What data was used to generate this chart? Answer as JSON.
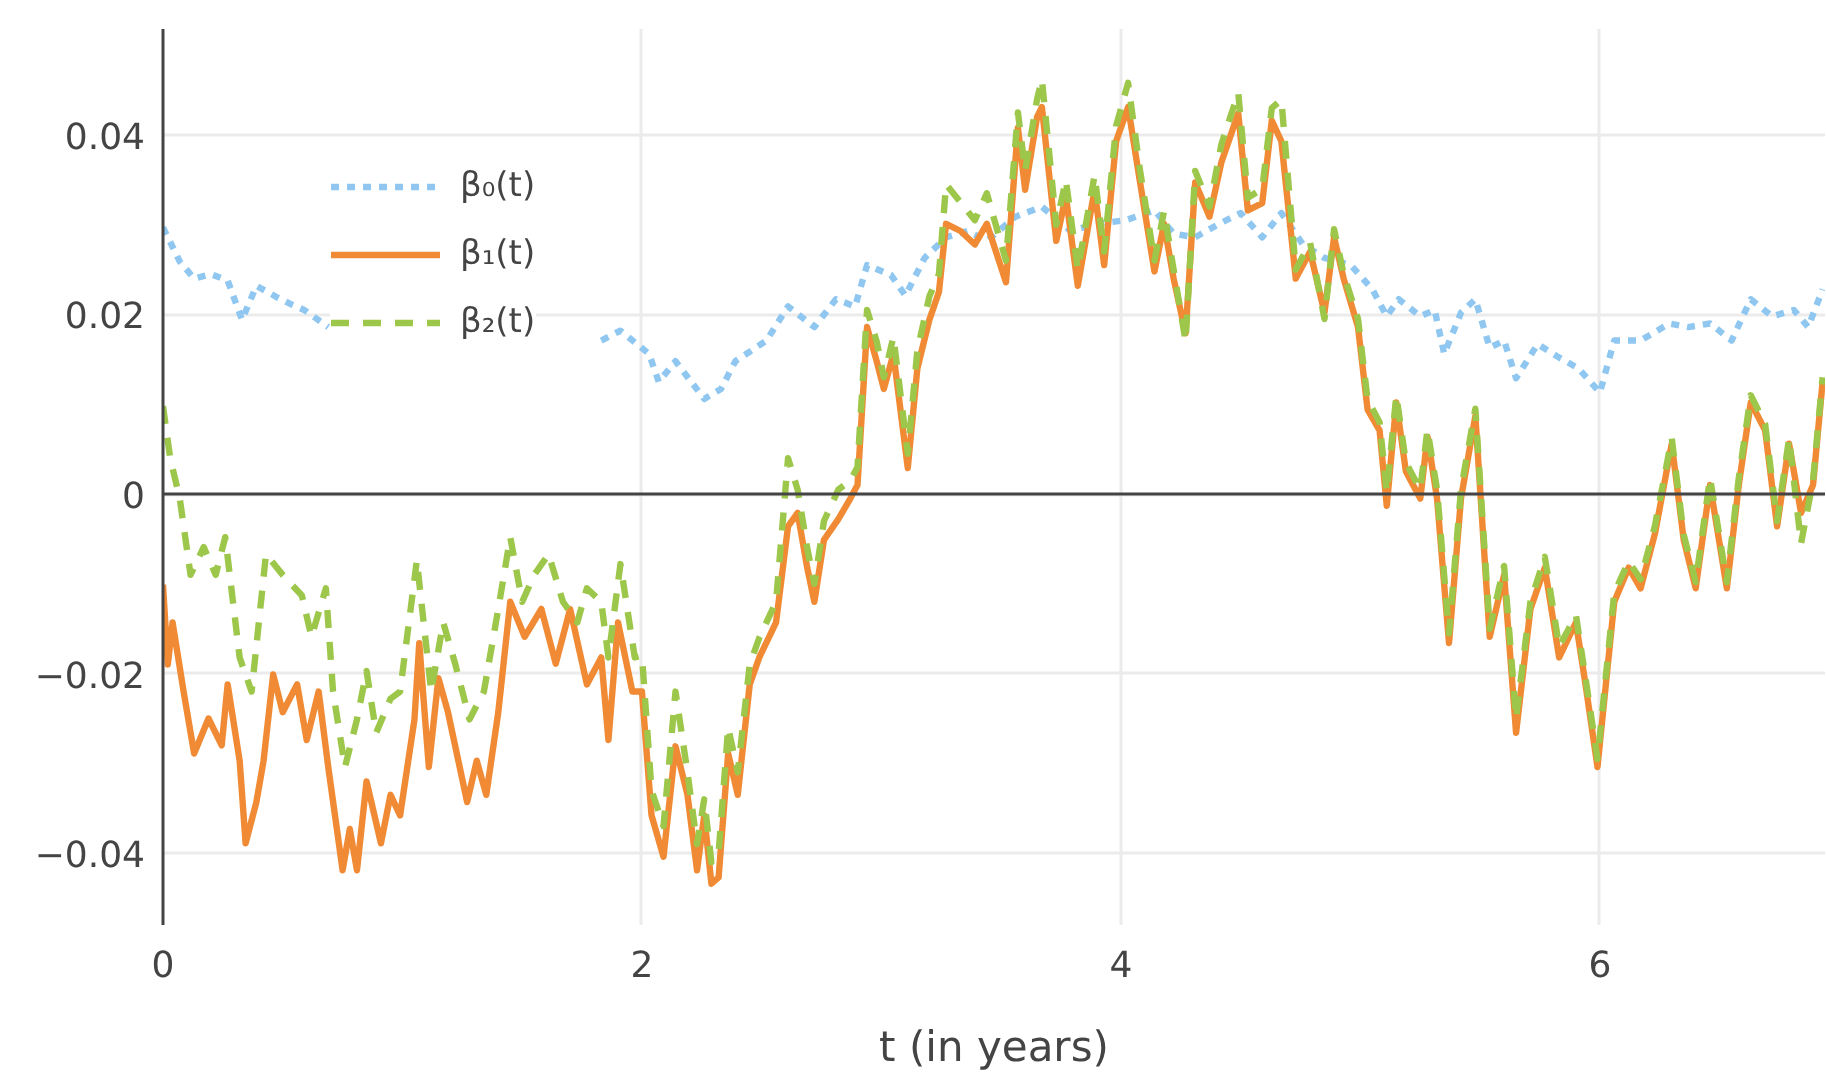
{
  "chart_data": {
    "type": "line",
    "xlabel": "t (in years)",
    "xlim": [
      0,
      6.94
    ],
    "xticks": [
      0,
      2,
      4,
      6
    ],
    "ylim": [
      -0.048,
      0.0518
    ],
    "yticks": [
      {
        "value": -0.04,
        "label": "−0.04"
      },
      {
        "value": -0.02,
        "label": "−0.02"
      },
      0,
      0.02,
      0.04
    ],
    "grid": true,
    "legend": "top left",
    "ref_lines": [
      {
        "axis": "y",
        "value": 0,
        "color": "#444444"
      }
    ],
    "series": [
      {
        "name": "β₀(t)",
        "color": "#8fc7f0",
        "line_style": "dotted",
        "x": [
          0,
          0.07,
          0.13,
          0.2,
          0.27,
          0.33,
          0.39,
          0.47,
          0.53,
          0.59,
          0.69,
          1.2,
          1.83,
          1.91,
          2.03,
          2.07,
          2.14,
          2.26,
          2.33,
          2.39,
          2.52,
          2.61,
          2.72,
          2.81,
          2.89,
          2.94,
          3.04,
          3.1,
          3.18,
          3.27,
          3.36,
          3.44,
          3.56,
          3.67,
          3.79,
          3.9,
          4.02,
          4.14,
          4.22,
          4.31,
          4.41,
          4.5,
          4.59,
          4.67,
          4.76,
          4.85,
          4.96,
          5.05,
          5.11,
          5.16,
          5.25,
          5.31,
          5.35,
          5.42,
          5.48,
          5.54,
          5.6,
          5.65,
          5.74,
          5.83,
          5.91,
          6.0,
          6.06,
          6.17,
          6.29,
          6.37,
          6.46,
          6.55,
          6.63,
          6.72,
          6.81,
          6.87,
          6.93
        ],
        "values": [
          0.0297,
          0.0259,
          0.024,
          0.0245,
          0.0238,
          0.0194,
          0.0232,
          0.022,
          0.0212,
          0.0205,
          0.0186,
          null,
          0.0171,
          0.0182,
          0.0156,
          0.0125,
          0.0148,
          0.0106,
          0.0117,
          0.0148,
          0.0171,
          0.0209,
          0.0186,
          0.0217,
          0.0209,
          0.0255,
          0.0244,
          0.0221,
          0.0263,
          0.0286,
          0.0293,
          0.0282,
          0.0309,
          0.032,
          0.0293,
          0.0301,
          0.0305,
          0.0316,
          0.029,
          0.0286,
          0.0301,
          0.0313,
          0.0286,
          0.0313,
          0.0278,
          0.0263,
          0.0255,
          0.0228,
          0.0198,
          0.0217,
          0.0198,
          0.0205,
          0.0156,
          0.0202,
          0.0217,
          0.0163,
          0.0171,
          0.0129,
          0.0167,
          0.0152,
          0.014,
          0.0113,
          0.0171,
          0.0171,
          0.019,
          0.0186,
          0.019,
          0.0171,
          0.0217,
          0.0198,
          0.0205,
          0.0186,
          0.0228
        ]
      },
      {
        "name": "β₁(t)",
        "color": "#f08a34",
        "line_style": "solid",
        "x": [
          0,
          0.02,
          0.04,
          0.086,
          0.13,
          0.19,
          0.245,
          0.27,
          0.32,
          0.345,
          0.39,
          0.42,
          0.46,
          0.5,
          0.56,
          0.6,
          0.65,
          0.69,
          0.75,
          0.78,
          0.81,
          0.85,
          0.91,
          0.95,
          0.99,
          1.05,
          1.07,
          1.11,
          1.15,
          1.19,
          1.27,
          1.31,
          1.35,
          1.4,
          1.45,
          1.51,
          1.58,
          1.64,
          1.7,
          1.77,
          1.83,
          1.86,
          1.9,
          1.96,
          2.0,
          2.04,
          2.09,
          2.14,
          2.19,
          2.23,
          2.26,
          2.29,
          2.32,
          2.36,
          2.4,
          2.45,
          2.49,
          2.56,
          2.61,
          2.65,
          2.69,
          2.72,
          2.76,
          2.82,
          2.87,
          2.9,
          2.94,
          2.98,
          3.01,
          3.05,
          3.11,
          3.15,
          3.2,
          3.24,
          3.27,
          3.33,
          3.39,
          3.44,
          3.52,
          3.57,
          3.6,
          3.65,
          3.67,
          3.73,
          3.77,
          3.82,
          3.89,
          3.93,
          3.98,
          4.03,
          4.08,
          4.14,
          4.18,
          4.22,
          4.27,
          4.31,
          4.37,
          4.42,
          4.49,
          4.53,
          4.59,
          4.63,
          4.67,
          4.73,
          4.79,
          4.85,
          4.89,
          4.93,
          4.99,
          5.03,
          5.08,
          5.11,
          5.15,
          5.19,
          5.25,
          5.28,
          5.32,
          5.37,
          5.42,
          5.48,
          5.54,
          5.6,
          5.65,
          5.71,
          5.77,
          5.83,
          5.9,
          5.94,
          5.99,
          6.06,
          6.12,
          6.17,
          6.23,
          6.3,
          6.35,
          6.4,
          6.46,
          6.53,
          6.58,
          6.63,
          6.69,
          6.74,
          6.79,
          6.84,
          6.89,
          6.93
        ],
        "values": [
          -0.0101,
          -0.019,
          -0.0143,
          -0.022,
          -0.0289,
          -0.025,
          -0.028,
          -0.0212,
          -0.0297,
          -0.0389,
          -0.0343,
          -0.0297,
          -0.0201,
          -0.0243,
          -0.0212,
          -0.0274,
          -0.022,
          -0.0304,
          -0.0419,
          -0.0373,
          -0.0419,
          -0.032,
          -0.0389,
          -0.0335,
          -0.0358,
          -0.0251,
          -0.0166,
          -0.0304,
          -0.0205,
          -0.0243,
          -0.0343,
          -0.0297,
          -0.0335,
          -0.0243,
          -0.012,
          -0.0159,
          -0.0128,
          -0.0189,
          -0.0128,
          -0.0212,
          -0.0182,
          -0.0274,
          -0.0143,
          -0.022,
          -0.022,
          -0.0358,
          -0.0404,
          -0.0281,
          -0.0335,
          -0.0419,
          -0.0358,
          -0.0434,
          -0.0427,
          -0.0289,
          -0.0335,
          -0.0212,
          -0.0182,
          -0.0143,
          -0.0036,
          -0.0021,
          -0.0082,
          -0.012,
          -0.0051,
          -0.0028,
          -0.0005,
          0.001,
          0.0186,
          0.0148,
          0.0117,
          0.0156,
          0.0029,
          0.014,
          0.0194,
          0.0225,
          0.0301,
          0.0293,
          0.0278,
          0.0301,
          0.0236,
          0.0408,
          0.0339,
          0.042,
          0.0431,
          0.0282,
          0.0332,
          0.0232,
          0.0339,
          0.0255,
          0.0393,
          0.0431,
          0.0347,
          0.0248,
          0.0301,
          0.024,
          0.0179,
          0.0347,
          0.0309,
          0.037,
          0.0424,
          0.0316,
          0.0324,
          0.0416,
          0.0393,
          0.024,
          0.027,
          0.0202,
          0.0286,
          0.024,
          0.0186,
          0.0094,
          0.0071,
          -0.0013,
          0.0102,
          0.0025,
          -0.0005,
          0.0064,
          -0.0005,
          -0.0166,
          -0.0005,
          0.0087,
          -0.0159,
          -0.009,
          -0.0266,
          -0.0128,
          -0.0082,
          -0.0182,
          -0.0143,
          -0.0212,
          -0.0304,
          -0.012,
          -0.0082,
          -0.0105,
          -0.0044,
          0.0056,
          -0.0051,
          -0.0105,
          0.001,
          -0.0105,
          0.001,
          0.0102,
          0.0071,
          -0.0036,
          0.0056,
          -0.0021,
          0.001,
          0.0125
        ]
      },
      {
        "name": "β₂(t)",
        "color": "#9dc74a",
        "line_style": "dashed",
        "x": [
          0,
          0.03,
          0.07,
          0.115,
          0.17,
          0.22,
          0.26,
          0.32,
          0.37,
          0.43,
          0.5,
          0.58,
          0.62,
          0.68,
          0.71,
          0.76,
          0.81,
          0.85,
          0.89,
          0.95,
          0.99,
          1.06,
          1.12,
          1.17,
          1.22,
          1.28,
          1.34,
          1.4,
          1.45,
          1.5,
          1.55,
          1.61,
          1.67,
          1.73,
          1.77,
          1.83,
          1.86,
          1.91,
          1.97,
          2.0,
          2.04,
          2.09,
          2.14,
          2.19,
          2.23,
          2.26,
          2.29,
          2.32,
          2.36,
          2.4,
          2.45,
          2.49,
          2.56,
          2.61,
          2.65,
          2.69,
          2.72,
          2.76,
          2.82,
          2.87,
          2.9,
          2.94,
          2.98,
          3.01,
          3.05,
          3.11,
          3.15,
          3.2,
          3.24,
          3.27,
          3.33,
          3.39,
          3.44,
          3.52,
          3.57,
          3.6,
          3.65,
          3.67,
          3.73,
          3.77,
          3.82,
          3.89,
          3.93,
          3.98,
          4.03,
          4.08,
          4.14,
          4.18,
          4.22,
          4.27,
          4.31,
          4.37,
          4.42,
          4.49,
          4.53,
          4.59,
          4.63,
          4.67,
          4.73,
          4.79,
          4.85,
          4.89,
          4.93,
          4.99,
          5.03,
          5.08,
          5.11,
          5.15,
          5.19,
          5.25,
          5.28,
          5.32,
          5.37,
          5.42,
          5.48,
          5.54,
          5.6,
          5.65,
          5.71,
          5.77,
          5.83,
          5.9,
          5.94,
          5.99,
          6.06,
          6.12,
          6.17,
          6.23,
          6.3,
          6.35,
          6.4,
          6.46,
          6.53,
          6.58,
          6.63,
          6.69,
          6.74,
          6.79,
          6.84,
          6.89,
          6.93
        ],
        "values": [
          0.0098,
          0.004,
          -0.0005,
          -0.009,
          -0.0059,
          -0.009,
          -0.0048,
          -0.0182,
          -0.022,
          -0.0067,
          -0.009,
          -0.0113,
          -0.0159,
          -0.0105,
          -0.022,
          -0.0304,
          -0.0251,
          -0.0197,
          -0.0266,
          -0.0228,
          -0.022,
          -0.0074,
          -0.022,
          -0.0143,
          -0.0189,
          -0.0251,
          -0.022,
          -0.0128,
          -0.0048,
          -0.012,
          -0.009,
          -0.0067,
          -0.012,
          -0.0143,
          -0.0105,
          -0.012,
          -0.0182,
          -0.0078,
          -0.0182,
          -0.018,
          -0.033,
          -0.037,
          -0.022,
          -0.031,
          -0.039,
          -0.034,
          -0.041,
          -0.04,
          -0.026,
          -0.031,
          -0.019,
          -0.016,
          -0.012,
          0.004,
          0.0005,
          -0.006,
          -0.01,
          -0.003,
          0.0005,
          0.0015,
          0.003,
          0.0205,
          0.017,
          0.013,
          0.0175,
          0.0045,
          0.016,
          0.022,
          0.0245,
          0.0345,
          0.0325,
          0.0305,
          0.0335,
          0.026,
          0.0425,
          0.036,
          0.044,
          0.0462,
          0.03,
          0.035,
          0.025,
          0.0355,
          0.027,
          0.041,
          0.0458,
          0.036,
          0.026,
          0.0315,
          0.025,
          0.017,
          0.036,
          0.032,
          0.039,
          0.0447,
          0.033,
          0.034,
          0.043,
          0.0439,
          0.025,
          0.028,
          0.0195,
          0.0295,
          0.0245,
          0.0195,
          0.0105,
          0.008,
          0.0002,
          0.011,
          0.0035,
          0.0005,
          0.0072,
          0.0005,
          -0.0155,
          0.0005,
          0.0095,
          -0.015,
          -0.008,
          -0.025,
          -0.012,
          -0.007,
          -0.017,
          -0.0135,
          -0.0205,
          -0.0295,
          -0.011,
          -0.0075,
          -0.0095,
          -0.0035,
          0.0062,
          -0.0045,
          -0.0098,
          0.0018,
          -0.0098,
          0.0018,
          0.011,
          0.0078,
          -0.003,
          0.0062,
          -0.0055,
          0.0015,
          0.013
        ]
      }
    ]
  }
}
